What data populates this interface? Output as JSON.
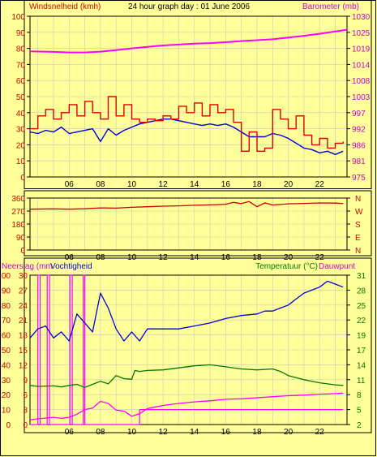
{
  "title": "24 hour graph day : 01 June 2006",
  "colors": {
    "background": "#ffff99",
    "frame": "#000000",
    "grid": "#c8c8c8",
    "windspeed": "#0000dd",
    "windgust": "#dd0000",
    "barometer": "#ff00ff",
    "direction": "#cc0000",
    "rain": "#ff00ff",
    "humidity": "#0000dd",
    "temperature": "#007700",
    "dewpoint": "#ff00ff",
    "rain_label": "#000000"
  },
  "chart_data": [
    {
      "type": "line",
      "panel": "wind-barometer",
      "ylabel": "Windsnelheid (kmh)",
      "y2label": "Barometer (mb)",
      "ylim": [
        0,
        100
      ],
      "y2lim": [
        975,
        1030
      ],
      "yticks": [
        0,
        10,
        20,
        30,
        40,
        50,
        60,
        70,
        80,
        90,
        100
      ],
      "y2ticks": [
        975,
        981,
        986,
        992,
        997,
        1003,
        1008,
        1014,
        1019,
        1025,
        1030
      ],
      "xlim": [
        3.5,
        23.75
      ],
      "xticks": [
        "06",
        "08",
        "10",
        "12",
        "14",
        "16",
        "18",
        "20",
        "22"
      ],
      "grid": true,
      "series": [
        {
          "name": "windspeed",
          "axis": "left",
          "x": [
            3.5,
            4,
            4.5,
            5,
            5.5,
            6,
            6.5,
            7,
            7.5,
            8,
            8.5,
            9,
            9.5,
            10,
            10.5,
            11,
            11.5,
            12,
            12.5,
            13,
            13.5,
            14,
            14.5,
            15,
            15.5,
            16,
            16.5,
            17,
            17.5,
            18,
            18.5,
            19,
            19.5,
            20,
            20.5,
            21,
            21.5,
            22,
            22.5,
            23,
            23.5
          ],
          "y": [
            28,
            27,
            29,
            28,
            31,
            27,
            28,
            29,
            30,
            22,
            30,
            26,
            29,
            31,
            33,
            34,
            35,
            36,
            36,
            35,
            34,
            33,
            32,
            33,
            32,
            33,
            31,
            28,
            25,
            25,
            25,
            27,
            26,
            24,
            21,
            18,
            17,
            15,
            16,
            14,
            16
          ]
        },
        {
          "name": "windgust",
          "axis": "left",
          "x": [
            3.5,
            4,
            4.5,
            5,
            5.5,
            6,
            6.5,
            7,
            7.5,
            8,
            8.5,
            9,
            9.5,
            10,
            10.5,
            11,
            11.5,
            12,
            12.5,
            13,
            13.5,
            14,
            14.5,
            15,
            15.5,
            16,
            16.5,
            17,
            17.5,
            18,
            18.5,
            19,
            19.5,
            20,
            20.5,
            21,
            21.5,
            22,
            22.5,
            23,
            23.5
          ],
          "y": [
            30,
            38,
            42,
            36,
            40,
            45,
            38,
            47,
            40,
            36,
            50,
            38,
            45,
            36,
            34,
            36,
            35,
            38,
            36,
            44,
            40,
            46,
            38,
            45,
            40,
            42,
            34,
            16,
            28,
            16,
            18,
            42,
            36,
            30,
            38,
            26,
            20,
            24,
            18,
            21,
            22
          ]
        },
        {
          "name": "barometer",
          "axis": "right",
          "x": [
            3.5,
            5,
            6,
            7,
            8,
            9,
            10,
            11,
            12,
            13,
            14,
            15,
            16,
            17,
            18,
            19,
            20,
            21,
            22,
            23,
            23.75
          ],
          "y": [
            1018,
            1017.8,
            1017.6,
            1017.6,
            1017.9,
            1018.4,
            1019,
            1019.5,
            1020,
            1020.3,
            1020.6,
            1020.8,
            1021.1,
            1021.5,
            1021.8,
            1022.1,
            1022.7,
            1023.3,
            1024,
            1024.8,
            1025.4
          ]
        }
      ]
    },
    {
      "type": "line",
      "panel": "wind-direction",
      "ylim": [
        0,
        360
      ],
      "yticks": [
        0,
        90,
        180,
        270,
        360
      ],
      "y2ticks": [
        "N",
        "E",
        "S",
        "W",
        "N"
      ],
      "xlim": [
        3.5,
        23.75
      ],
      "grid": true,
      "series": [
        {
          "name": "direction",
          "axis": "left",
          "x": [
            3.5,
            5,
            6,
            7,
            8,
            9,
            10,
            11,
            12,
            13,
            14,
            15,
            16,
            16.5,
            17,
            17.5,
            18,
            18.5,
            19,
            20,
            21,
            22,
            23,
            23.5
          ],
          "y": [
            283,
            285,
            283,
            286,
            292,
            290,
            296,
            300,
            304,
            306,
            310,
            313,
            317,
            330,
            322,
            336,
            300,
            326,
            312,
            320,
            323,
            326,
            325,
            322
          ]
        }
      ]
    },
    {
      "type": "line",
      "panel": "rain-humidity-temperature",
      "ylabel": "Neerslag (mm",
      "ylabel2": "Vochtigheid",
      "y3label": "Temperatuur (°C)",
      "y4label": "Dauwpunt",
      "ylim": [
        0,
        30
      ],
      "humlim": [
        0,
        100
      ],
      "y2lim": [
        2,
        31
      ],
      "yticks": [
        0,
        3,
        6,
        9,
        12,
        15,
        18,
        21,
        24,
        27,
        30
      ],
      "humticks": [
        0,
        10,
        20,
        30,
        40,
        50,
        60,
        70,
        80,
        90,
        100
      ],
      "y2ticks": [
        2,
        5,
        8,
        11,
        14,
        17,
        19,
        22,
        25,
        28,
        31
      ],
      "xlim": [
        3.5,
        23.75
      ],
      "grid": true,
      "series": [
        {
          "name": "rain",
          "axis": "rain",
          "x": [
            3.5,
            3.9,
            4.0,
            4.15,
            4.5,
            4.6,
            4.75,
            5.5,
            6.0,
            6.05,
            6.2,
            6.5,
            6.85,
            6.9,
            7.0,
            7.5,
            8.5,
            9.0,
            10.0,
            10.5,
            11.0,
            12,
            14,
            16,
            18,
            20,
            22,
            23.5
          ],
          "y": [
            0,
            0,
            30,
            0,
            0,
            30,
            0,
            0,
            0,
            30,
            0,
            0,
            0,
            30,
            0,
            0,
            0,
            0,
            0,
            3,
            3,
            3,
            3,
            3,
            3,
            3,
            3,
            3
          ]
        },
        {
          "name": "humidity",
          "axis": "humidity",
          "x": [
            3.5,
            4,
            4.5,
            5,
            5.5,
            6,
            6.5,
            7,
            7.5,
            8,
            8.5,
            9,
            9.5,
            10,
            10.5,
            11,
            12,
            13,
            14,
            15,
            16,
            17,
            18,
            18.5,
            19,
            19.5,
            20,
            20.5,
            21,
            21.5,
            22,
            22.5,
            23,
            23.5
          ],
          "y": [
            58,
            64,
            66,
            58,
            62,
            56,
            74,
            68,
            62,
            88,
            78,
            64,
            56,
            62,
            56,
            64,
            64,
            64,
            66,
            68,
            71,
            73,
            74,
            76,
            76,
            78,
            80,
            84,
            88,
            90,
            92,
            96,
            94,
            92
          ]
        },
        {
          "name": "temperature",
          "axis": "temperature",
          "x": [
            3.5,
            4,
            5,
            5.5,
            6,
            6.5,
            7,
            7.5,
            8,
            8.5,
            9,
            9.5,
            10,
            10.2,
            10.5,
            11,
            12,
            13,
            14,
            15,
            16,
            17,
            18,
            19,
            19.5,
            20,
            21,
            22,
            23,
            23.5
          ],
          "y": [
            9.6,
            9.4,
            9.5,
            9.3,
            9.6,
            9.8,
            9.2,
            9.8,
            10.4,
            9.9,
            11.5,
            10.9,
            10.8,
            12.5,
            12.3,
            12.5,
            12.6,
            13,
            13.4,
            13.6,
            13.2,
            12.8,
            12.6,
            12.8,
            12.3,
            11.5,
            10.7,
            10.1,
            9.7,
            9.6
          ]
        },
        {
          "name": "dewpoint",
          "axis": "temperature",
          "x": [
            3.5,
            4,
            5,
            5.5,
            6,
            6.5,
            7,
            7.5,
            8,
            8.5,
            9,
            9.5,
            10,
            10.5,
            11,
            12,
            13,
            14,
            15,
            16,
            17,
            18,
            19,
            20,
            21,
            22,
            23,
            23.5
          ],
          "y": [
            2.9,
            3.1,
            3.4,
            3.2,
            3.4,
            4.0,
            4.9,
            5.2,
            6.5,
            6.1,
            4.8,
            4.6,
            3.6,
            4.1,
            5.1,
            5.7,
            6.1,
            6.4,
            6.6,
            6.9,
            7.0,
            7.2,
            7.4,
            7.6,
            7.7,
            7.9,
            8.0,
            8.1
          ]
        }
      ]
    }
  ]
}
